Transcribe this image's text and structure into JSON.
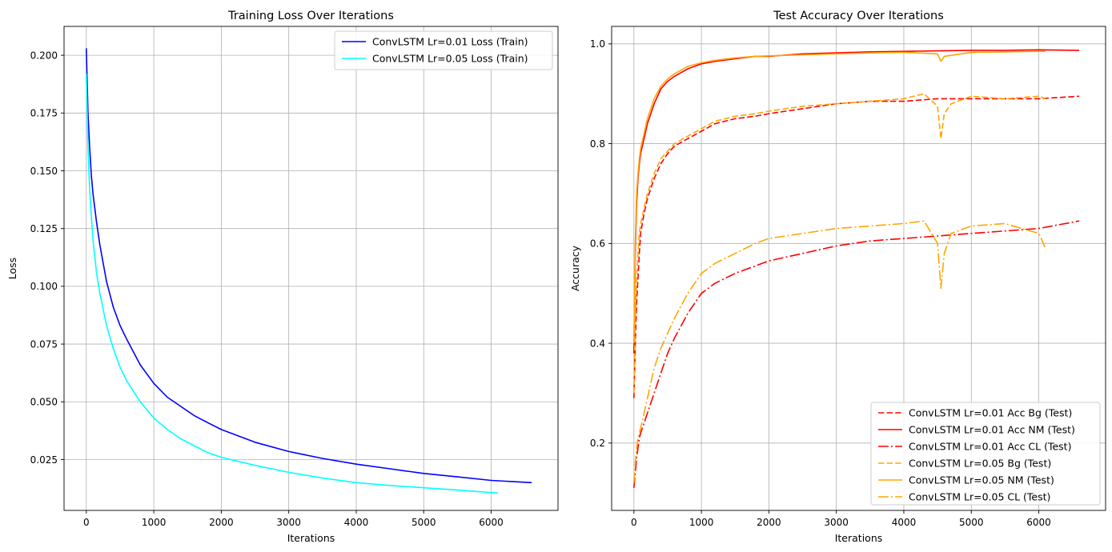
{
  "chart_data": [
    {
      "type": "line",
      "title": "Training Loss Over Iterations",
      "xlabel": "Iterations",
      "ylabel": "Loss",
      "xlim": [
        -330,
        6990
      ],
      "ylim": [
        0.003,
        0.2125
      ],
      "xticks": [
        0,
        1000,
        2000,
        3000,
        4000,
        5000,
        6000
      ],
      "yticks": [
        0.025,
        0.05,
        0.075,
        0.1,
        0.125,
        0.15,
        0.175,
        0.2
      ],
      "ytick_labels": [
        "0.025",
        "0.050",
        "0.075",
        "0.100",
        "0.125",
        "0.150",
        "0.175",
        "0.200"
      ],
      "grid": true,
      "legend_position": "upper right",
      "series": [
        {
          "name": "ConvLSTM Lr=0.01 Loss (Train)",
          "color": "#0000ff",
          "style": "solid",
          "x": [
            0,
            25,
            50,
            75,
            100,
            150,
            200,
            300,
            400,
            500,
            600,
            800,
            1000,
            1200,
            1400,
            1600,
            1800,
            2000,
            2500,
            3000,
            3500,
            4000,
            4500,
            5000,
            5500,
            6000,
            6600
          ],
          "y": [
            0.203,
            0.175,
            0.16,
            0.148,
            0.14,
            0.128,
            0.118,
            0.102,
            0.091,
            0.083,
            0.077,
            0.066,
            0.058,
            0.052,
            0.048,
            0.044,
            0.041,
            0.038,
            0.0325,
            0.0285,
            0.0255,
            0.023,
            0.021,
            0.019,
            0.0175,
            0.016,
            0.015
          ]
        },
        {
          "name": "ConvLSTM Lr=0.05 Loss (Train)",
          "color": "#00ffff",
          "style": "solid",
          "x": [
            0,
            25,
            50,
            75,
            100,
            150,
            200,
            300,
            400,
            500,
            600,
            800,
            1000,
            1200,
            1400,
            1600,
            1800,
            2000,
            2500,
            3000,
            3500,
            4000,
            4500,
            5000,
            5500,
            6100
          ],
          "y": [
            0.192,
            0.16,
            0.142,
            0.13,
            0.12,
            0.106,
            0.097,
            0.083,
            0.073,
            0.065,
            0.059,
            0.05,
            0.043,
            0.038,
            0.034,
            0.031,
            0.028,
            0.026,
            0.0225,
            0.0195,
            0.017,
            0.015,
            0.0138,
            0.0128,
            0.0118,
            0.0105
          ]
        }
      ]
    },
    {
      "type": "line",
      "title": "Test Accuracy Over Iterations",
      "xlabel": "Iterations",
      "ylabel": "Accuracy",
      "xlim": [
        -330,
        6990
      ],
      "ylim": [
        0.065,
        1.035
      ],
      "xticks": [
        0,
        1000,
        2000,
        3000,
        4000,
        5000,
        6000
      ],
      "yticks": [
        0.2,
        0.4,
        0.6,
        0.8,
        1.0
      ],
      "ytick_labels": [
        "0.2",
        "0.4",
        "0.6",
        "0.8",
        "1.0"
      ],
      "grid": true,
      "legend_position": "lower right",
      "series": [
        {
          "name": "ConvLSTM Lr=0.01 Acc Bg (Test)",
          "color": "#ff0000",
          "style": "dashed",
          "x": [
            0,
            20,
            40,
            60,
            80,
            100,
            150,
            200,
            300,
            400,
            500,
            600,
            800,
            1000,
            1200,
            1500,
            1800,
            2000,
            2500,
            3000,
            3500,
            4000,
            4500,
            5000,
            5500,
            6000,
            6600
          ],
          "y": [
            0.29,
            0.4,
            0.48,
            0.53,
            0.58,
            0.62,
            0.66,
            0.69,
            0.73,
            0.76,
            0.78,
            0.795,
            0.81,
            0.825,
            0.84,
            0.85,
            0.855,
            0.86,
            0.87,
            0.88,
            0.885,
            0.885,
            0.89,
            0.89,
            0.89,
            0.89,
            0.895
          ]
        },
        {
          "name": "ConvLSTM Lr=0.01 Acc NM (Test)",
          "color": "#ff0000",
          "style": "solid",
          "x": [
            0,
            20,
            40,
            60,
            80,
            100,
            150,
            200,
            300,
            400,
            500,
            600,
            800,
            1000,
            1200,
            1500,
            1800,
            2000,
            2500,
            3000,
            3500,
            4000,
            4500,
            5000,
            5500,
            6000,
            6600
          ],
          "y": [
            0.38,
            0.58,
            0.68,
            0.73,
            0.76,
            0.78,
            0.81,
            0.84,
            0.88,
            0.91,
            0.925,
            0.935,
            0.95,
            0.96,
            0.965,
            0.97,
            0.975,
            0.975,
            0.98,
            0.982,
            0.984,
            0.985,
            0.986,
            0.987,
            0.987,
            0.988,
            0.987
          ]
        },
        {
          "name": "ConvLSTM Lr=0.01 Acc CL (Test)",
          "color": "#ff0000",
          "style": "dashdot",
          "x": [
            0,
            20,
            40,
            60,
            80,
            100,
            150,
            200,
            300,
            400,
            500,
            600,
            800,
            1000,
            1200,
            1500,
            1800,
            2000,
            2500,
            3000,
            3500,
            4000,
            4500,
            5000,
            5500,
            6000,
            6600
          ],
          "y": [
            0.11,
            0.14,
            0.17,
            0.19,
            0.21,
            0.22,
            0.24,
            0.26,
            0.3,
            0.34,
            0.38,
            0.41,
            0.46,
            0.5,
            0.52,
            0.54,
            0.555,
            0.565,
            0.58,
            0.595,
            0.605,
            0.61,
            0.615,
            0.62,
            0.625,
            0.63,
            0.645
          ]
        },
        {
          "name": "ConvLSTM Lr=0.05 Bg (Test)",
          "color": "#ffa500",
          "style": "dashed",
          "x": [
            0,
            20,
            40,
            60,
            80,
            100,
            150,
            200,
            300,
            400,
            500,
            600,
            800,
            1000,
            1200,
            1500,
            1800,
            2000,
            2500,
            3000,
            3500,
            4000,
            4300,
            4500,
            4550,
            4600,
            4700,
            5000,
            5500,
            6000,
            6100
          ],
          "y": [
            0.3,
            0.45,
            0.53,
            0.58,
            0.62,
            0.64,
            0.67,
            0.7,
            0.74,
            0.77,
            0.785,
            0.8,
            0.815,
            0.83,
            0.845,
            0.855,
            0.86,
            0.865,
            0.875,
            0.88,
            0.885,
            0.89,
            0.9,
            0.875,
            0.81,
            0.86,
            0.88,
            0.895,
            0.89,
            0.895,
            0.89
          ]
        },
        {
          "name": "ConvLSTM Lr=0.05 NM (Test)",
          "color": "#ffa500",
          "style": "solid",
          "x": [
            0,
            20,
            40,
            60,
            80,
            100,
            150,
            200,
            300,
            400,
            500,
            600,
            800,
            1000,
            1200,
            1500,
            1800,
            2000,
            2500,
            3000,
            3500,
            4000,
            4500,
            4550,
            4600,
            5000,
            5500,
            6000,
            6100
          ],
          "y": [
            0.4,
            0.6,
            0.7,
            0.74,
            0.77,
            0.79,
            0.82,
            0.85,
            0.89,
            0.915,
            0.93,
            0.94,
            0.955,
            0.962,
            0.967,
            0.972,
            0.975,
            0.976,
            0.978,
            0.98,
            0.982,
            0.983,
            0.98,
            0.965,
            0.975,
            0.983,
            0.984,
            0.985,
            0.985
          ]
        },
        {
          "name": "ConvLSTM Lr=0.05 CL (Test)",
          "color": "#ffa500",
          "style": "dashdot",
          "x": [
            0,
            20,
            40,
            60,
            80,
            100,
            150,
            200,
            300,
            400,
            500,
            600,
            800,
            1000,
            1200,
            1500,
            1800,
            2000,
            2500,
            3000,
            3500,
            4000,
            4300,
            4500,
            4550,
            4600,
            4700,
            5000,
            5500,
            6000,
            6100
          ],
          "y": [
            0.12,
            0.16,
            0.19,
            0.21,
            0.22,
            0.23,
            0.26,
            0.29,
            0.35,
            0.39,
            0.42,
            0.45,
            0.5,
            0.54,
            0.56,
            0.58,
            0.6,
            0.61,
            0.62,
            0.63,
            0.635,
            0.64,
            0.645,
            0.6,
            0.51,
            0.58,
            0.62,
            0.635,
            0.64,
            0.62,
            0.59
          ]
        }
      ]
    }
  ]
}
